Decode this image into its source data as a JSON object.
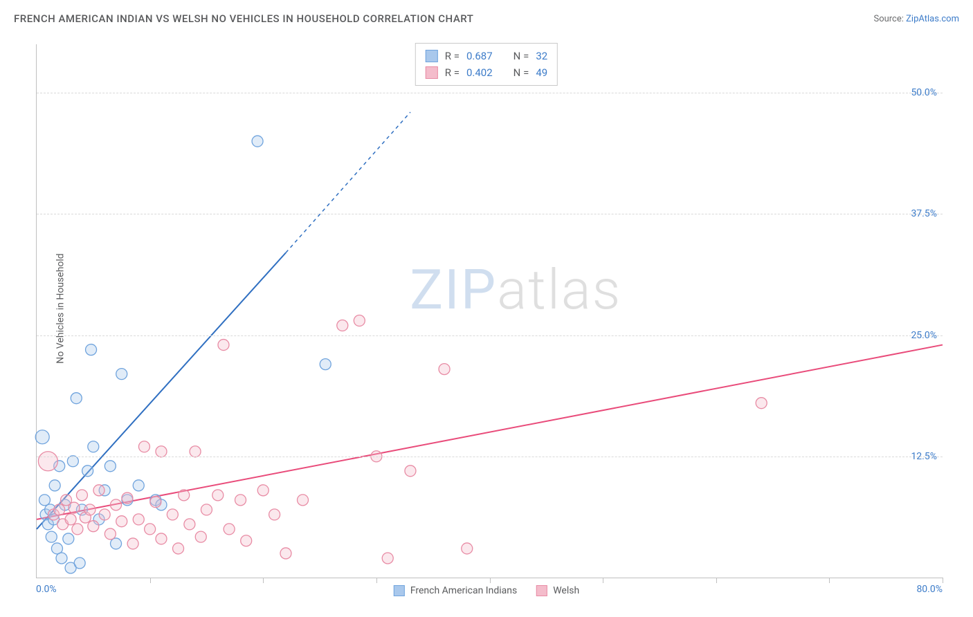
{
  "title": "FRENCH AMERICAN INDIAN VS WELSH NO VEHICLES IN HOUSEHOLD CORRELATION CHART",
  "source_label": "Source: ",
  "source_name": "ZipAtlas.com",
  "watermark_a": "ZIP",
  "watermark_b": "atlas",
  "chart": {
    "type": "scatter",
    "xlim": [
      0,
      80
    ],
    "ylim": [
      0,
      55
    ],
    "xtick_positions": [
      0,
      10,
      20,
      30,
      40,
      50,
      60,
      70,
      80
    ],
    "ytick_values": [
      12.5,
      25.0,
      37.5,
      50.0
    ],
    "ytick_labels": [
      "12.5%",
      "25.0%",
      "37.5%",
      "50.0%"
    ],
    "x_origin_label": "0.0%",
    "x_max_label": "80.0%",
    "ylabel": "No Vehicles in Household",
    "background_color": "#ffffff",
    "grid_color": "#d9d9d9",
    "axis_color": "#bfbfbf",
    "tick_label_color": "#3d7cc9",
    "label_color": "#5a5b5d",
    "title_color": "#58595b",
    "title_fontsize": 15,
    "label_fontsize": 14,
    "marker_radius": 8,
    "marker_radius_large": 12,
    "series": [
      {
        "name": "French American Indians",
        "color_fill": "#a9c8ec",
        "color_stroke": "#6fa3dd",
        "trend_color": "#2f6fc1",
        "trend": {
          "x1": 0,
          "y1": 5.0,
          "x2_solid": 22,
          "y2_solid": 33.5,
          "x2_dash": 33,
          "y2_dash": 48
        },
        "stats": {
          "R": "0.687",
          "N": "32"
        },
        "points": [
          {
            "x": 0.5,
            "y": 14.5,
            "r": 10
          },
          {
            "x": 0.7,
            "y": 8.0
          },
          {
            "x": 0.8,
            "y": 6.5
          },
          {
            "x": 1.0,
            "y": 5.5
          },
          {
            "x": 1.2,
            "y": 7.0
          },
          {
            "x": 1.3,
            "y": 4.2
          },
          {
            "x": 1.5,
            "y": 6.0
          },
          {
            "x": 1.6,
            "y": 9.5
          },
          {
            "x": 1.8,
            "y": 3.0
          },
          {
            "x": 2.0,
            "y": 11.5
          },
          {
            "x": 2.2,
            "y": 2.0
          },
          {
            "x": 2.5,
            "y": 7.5
          },
          {
            "x": 2.8,
            "y": 4.0
          },
          {
            "x": 3.0,
            "y": 1.0
          },
          {
            "x": 3.2,
            "y": 12.0
          },
          {
            "x": 3.5,
            "y": 18.5
          },
          {
            "x": 4.0,
            "y": 7.0
          },
          {
            "x": 4.5,
            "y": 11.0
          },
          {
            "x": 4.8,
            "y": 23.5
          },
          {
            "x": 5.0,
            "y": 13.5
          },
          {
            "x": 5.5,
            "y": 6.0
          },
          {
            "x": 6.0,
            "y": 9.0
          },
          {
            "x": 6.5,
            "y": 11.5
          },
          {
            "x": 7.0,
            "y": 3.5
          },
          {
            "x": 7.5,
            "y": 21.0
          },
          {
            "x": 8.0,
            "y": 8.0
          },
          {
            "x": 9.0,
            "y": 9.5
          },
          {
            "x": 10.5,
            "y": 8.0
          },
          {
            "x": 11.0,
            "y": 7.5
          },
          {
            "x": 19.5,
            "y": 45.0
          },
          {
            "x": 25.5,
            "y": 22.0
          },
          {
            "x": 3.8,
            "y": 1.5
          }
        ]
      },
      {
        "name": "Welsh",
        "color_fill": "#f4bccb",
        "color_stroke": "#e88ba4",
        "trend_color": "#e94b7a",
        "trend": {
          "x1": 0,
          "y1": 6.0,
          "x2_solid": 80,
          "y2_solid": 24.0
        },
        "stats": {
          "R": "0.402",
          "N": "49"
        },
        "points": [
          {
            "x": 1.0,
            "y": 12.0,
            "r": 14
          },
          {
            "x": 1.5,
            "y": 6.5
          },
          {
            "x": 2.0,
            "y": 7.0
          },
          {
            "x": 2.3,
            "y": 5.5
          },
          {
            "x": 2.6,
            "y": 8.0
          },
          {
            "x": 3.0,
            "y": 6.0
          },
          {
            "x": 3.3,
            "y": 7.2
          },
          {
            "x": 3.6,
            "y": 5.0
          },
          {
            "x": 4.0,
            "y": 8.5
          },
          {
            "x": 4.3,
            "y": 6.2
          },
          {
            "x": 4.7,
            "y": 7.0
          },
          {
            "x": 5.0,
            "y": 5.3
          },
          {
            "x": 5.5,
            "y": 9.0
          },
          {
            "x": 6.0,
            "y": 6.5
          },
          {
            "x": 6.5,
            "y": 4.5
          },
          {
            "x": 7.0,
            "y": 7.5
          },
          {
            "x": 7.5,
            "y": 5.8
          },
          {
            "x": 8.0,
            "y": 8.2
          },
          {
            "x": 8.5,
            "y": 3.5
          },
          {
            "x": 9.0,
            "y": 6.0
          },
          {
            "x": 9.5,
            "y": 13.5
          },
          {
            "x": 10.0,
            "y": 5.0
          },
          {
            "x": 10.5,
            "y": 7.8
          },
          {
            "x": 11.0,
            "y": 4.0
          },
          {
            "x": 11.0,
            "y": 13.0
          },
          {
            "x": 12.0,
            "y": 6.5
          },
          {
            "x": 12.5,
            "y": 3.0
          },
          {
            "x": 13.0,
            "y": 8.5
          },
          {
            "x": 13.5,
            "y": 5.5
          },
          {
            "x": 14.0,
            "y": 13.0
          },
          {
            "x": 14.5,
            "y": 4.2
          },
          {
            "x": 15.0,
            "y": 7.0
          },
          {
            "x": 16.0,
            "y": 8.5
          },
          {
            "x": 16.5,
            "y": 24.0
          },
          {
            "x": 17.0,
            "y": 5.0
          },
          {
            "x": 18.0,
            "y": 8.0
          },
          {
            "x": 18.5,
            "y": 3.8
          },
          {
            "x": 20.0,
            "y": 9.0
          },
          {
            "x": 21.0,
            "y": 6.5
          },
          {
            "x": 22.0,
            "y": 2.5
          },
          {
            "x": 23.5,
            "y": 8.0
          },
          {
            "x": 27.0,
            "y": 26.0
          },
          {
            "x": 28.5,
            "y": 26.5
          },
          {
            "x": 30.0,
            "y": 12.5
          },
          {
            "x": 31.0,
            "y": 2.0
          },
          {
            "x": 33.0,
            "y": 11.0
          },
          {
            "x": 36.0,
            "y": 21.5
          },
          {
            "x": 38.0,
            "y": 3.0
          },
          {
            "x": 64.0,
            "y": 18.0
          }
        ]
      }
    ]
  },
  "stats_labels": {
    "R": "R =",
    "N": "N ="
  },
  "legend_items": [
    {
      "label": "French American Indians",
      "fill": "#a9c8ec",
      "stroke": "#6fa3dd"
    },
    {
      "label": "Welsh",
      "fill": "#f4bccb",
      "stroke": "#e88ba4"
    }
  ]
}
